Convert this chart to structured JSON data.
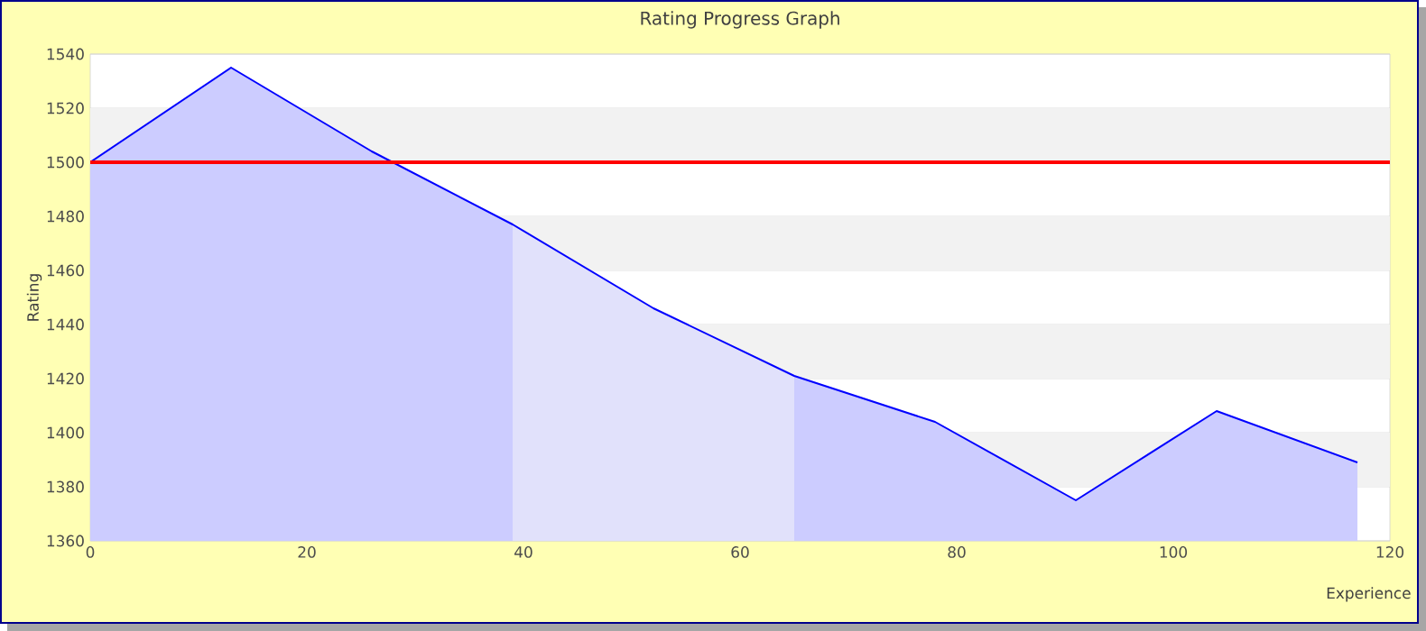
{
  "chart_data": {
    "type": "area",
    "title": "Rating Progress Graph",
    "xlabel": "Experience",
    "ylabel": "Rating",
    "x": [
      0,
      13,
      26,
      39,
      52,
      65,
      78,
      91,
      104,
      117
    ],
    "series": [
      {
        "color": "#0000ff",
        "values": [
          1500,
          1535,
          1504,
          1477,
          1446,
          1421,
          1404,
          1375,
          1408,
          1389
        ]
      }
    ],
    "bands": [
      {
        "axis": "x",
        "from": 39,
        "to": 65,
        "color": "#e1e1fb"
      }
    ],
    "ref_lines": [
      {
        "axis": "y",
        "value": 1500,
        "color": "#ff0000"
      }
    ],
    "xlim": [
      0,
      120
    ],
    "xticks": [
      0,
      20,
      40,
      60,
      80,
      100,
      120
    ],
    "ylim": [
      1360,
      1540
    ],
    "yticks": [
      1360,
      1380,
      1400,
      1420,
      1440,
      1460,
      1480,
      1500,
      1520,
      1540
    ],
    "grid": "y"
  }
}
